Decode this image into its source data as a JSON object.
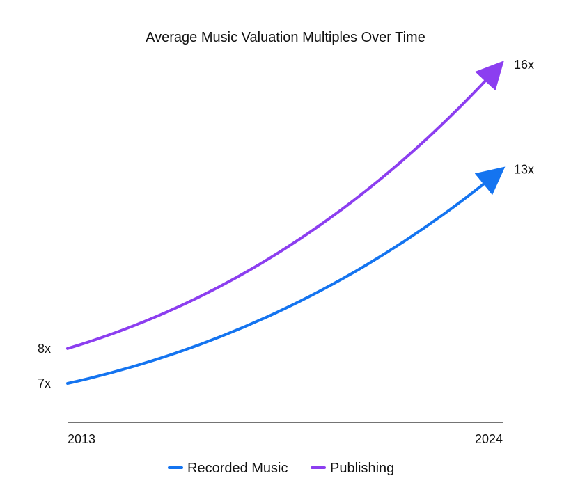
{
  "chart_data": {
    "type": "line",
    "title": "Average Music Valuation Multiples Over Time",
    "xlabel": "",
    "ylabel": "",
    "x": [
      "2013",
      "2024"
    ],
    "grid": false,
    "legend_position": "bottom-center",
    "series": [
      {
        "name": "Recorded Music",
        "color": "#1474f0",
        "values": [
          7,
          13
        ],
        "start_label": "7x",
        "end_label": "13x"
      },
      {
        "name": "Publishing",
        "color": "#8c3ef0",
        "values": [
          8,
          16
        ],
        "start_label": "8x",
        "end_label": "16x"
      }
    ]
  }
}
